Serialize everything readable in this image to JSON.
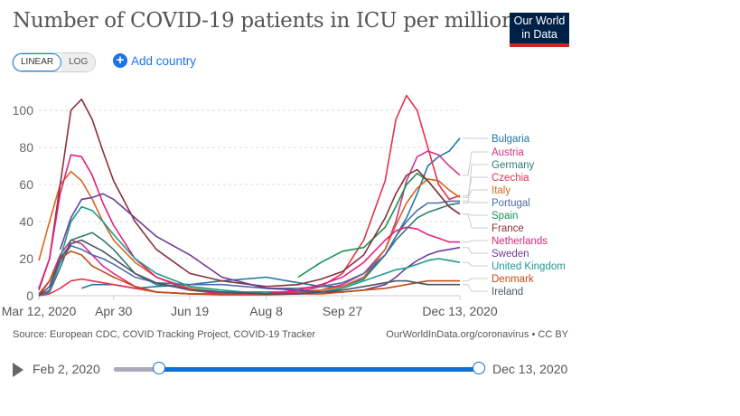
{
  "header": {
    "title": "Number of COVID-19 patients in ICU per million",
    "logo": [
      "Our World",
      "in Data"
    ]
  },
  "controls": {
    "linear": "LINEAR",
    "log": "LOG",
    "add_country": "Add country",
    "active_scale": "linear"
  },
  "footer": {
    "source": "Source: European CDC, COVID Tracking Project, COVID-19 Tracker",
    "credit": "OurWorldInData.org/coronavirus • CC BY"
  },
  "timeline": {
    "start": "Feb 2, 2020",
    "end": "Dec 13, 2020",
    "selected_range": [
      "Mar 12, 2020",
      "Dec 13, 2020"
    ]
  },
  "chart_data": {
    "type": "line",
    "title": "Number of COVID-19 patients in ICU per million",
    "y_ticks": [
      "0",
      "20",
      "40",
      "60",
      "80",
      "100"
    ],
    "ylim": [
      0,
      110
    ],
    "x_ticks": [
      "Mar 12, 2020",
      "Apr 30",
      "Jun 19",
      "Aug 8",
      "Sep 27",
      "Dec 13, 2020"
    ],
    "x_tick_dates": [
      "2020-03-12",
      "2020-04-30",
      "2020-06-19",
      "2020-08-08",
      "2020-09-27",
      "2020-12-13"
    ],
    "xlim": [
      "2020-03-12",
      "2020-12-13"
    ],
    "grid": "horizontal dashed",
    "legend": "right, line-end labels",
    "x": [
      "2020-03-12",
      "2020-03-19",
      "2020-03-26",
      "2020-04-02",
      "2020-04-09",
      "2020-04-16",
      "2020-04-23",
      "2020-04-30",
      "2020-05-14",
      "2020-05-28",
      "2020-06-19",
      "2020-07-10",
      "2020-08-08",
      "2020-08-29",
      "2020-09-13",
      "2020-09-27",
      "2020-10-11",
      "2020-10-25",
      "2020-11-01",
      "2020-11-08",
      "2020-11-15",
      "2020-11-22",
      "2020-11-29",
      "2020-12-06",
      "2020-12-13"
    ],
    "series": [
      {
        "name": "Bulgaria",
        "color": "#1f78a8",
        "values": [
          null,
          null,
          null,
          null,
          4,
          6,
          6,
          6,
          4,
          5,
          6,
          8,
          10,
          7,
          5,
          5,
          10,
          22,
          32,
          42,
          55,
          70,
          75,
          78,
          85
        ]
      },
      {
        "name": "Austria",
        "color": "#d62f8b",
        "values": [
          1,
          8,
          22,
          30,
          28,
          22,
          16,
          12,
          5,
          2,
          1,
          1,
          1,
          2,
          3,
          6,
          12,
          25,
          40,
          62,
          75,
          78,
          76,
          70,
          65
        ]
      },
      {
        "name": "Germany",
        "color": "#2b7d73",
        "values": [
          0,
          2,
          15,
          30,
          32,
          34,
          30,
          25,
          12,
          6,
          4,
          2,
          2,
          2,
          3,
          5,
          9,
          22,
          30,
          36,
          42,
          45,
          47,
          49,
          50
        ]
      },
      {
        "name": "Czechia",
        "color": "#e0344e",
        "values": [
          0,
          1,
          4,
          8,
          9,
          8,
          7,
          6,
          4,
          2,
          1,
          1,
          1,
          2,
          5,
          12,
          30,
          62,
          95,
          108,
          100,
          80,
          60,
          52,
          54
        ]
      },
      {
        "name": "Italy",
        "color": "#d8651f",
        "values": [
          19,
          40,
          60,
          67,
          62,
          52,
          40,
          30,
          18,
          10,
          4,
          1.5,
          0.6,
          1,
          3,
          5,
          10,
          25,
          38,
          50,
          58,
          63,
          62,
          57,
          53
        ]
      },
      {
        "name": "Portugal",
        "color": "#4e6bab",
        "values": [
          0,
          3,
          18,
          27,
          25,
          22,
          20,
          17,
          10,
          7,
          6,
          6,
          4,
          4,
          5,
          7,
          12,
          22,
          32,
          40,
          46,
          50,
          50,
          51,
          51
        ]
      },
      {
        "name": "Spain",
        "color": "#16934e",
        "values": [
          null,
          null,
          null,
          null,
          null,
          null,
          null,
          null,
          null,
          null,
          null,
          null,
          null,
          10,
          18,
          24,
          26,
          37,
          48,
          60,
          66,
          62,
          55,
          48,
          44
        ]
      },
      {
        "name": "France",
        "color": "#8b2f3a",
        "values": [
          3,
          20,
          60,
          100,
          106,
          95,
          78,
          62,
          40,
          25,
          12,
          8,
          5,
          6,
          9,
          13,
          22,
          42,
          55,
          65,
          68,
          62,
          55,
          48,
          44
        ]
      },
      {
        "name": "Netherlands",
        "color": "#e0237a",
        "values": [
          4,
          20,
          55,
          76,
          75,
          65,
          50,
          38,
          20,
          10,
          3,
          1,
          1,
          3,
          6,
          10,
          18,
          30,
          35,
          37,
          36,
          33,
          31,
          29,
          29
        ]
      },
      {
        "name": "Sweden",
        "color": "#6e3b9a",
        "values": [
          null,
          null,
          25,
          42,
          52,
          53,
          55,
          52,
          42,
          32,
          22,
          10,
          4,
          3,
          2,
          2,
          3,
          6,
          10,
          15,
          19,
          22,
          24,
          25,
          26
        ]
      },
      {
        "name": "United Kingdom",
        "color": "#1c9a8f",
        "values": [
          null,
          null,
          20,
          40,
          48,
          46,
          40,
          33,
          20,
          12,
          5,
          3,
          1,
          1,
          2,
          4,
          8,
          12,
          14,
          15,
          17,
          19,
          20,
          19,
          18
        ]
      },
      {
        "name": "Denmark",
        "color": "#c24b14",
        "values": [
          0,
          8,
          20,
          24,
          22,
          16,
          13,
          10,
          5,
          2,
          1,
          0.5,
          0.5,
          1,
          1,
          2,
          3,
          4,
          5,
          6,
          7,
          8,
          8,
          8,
          8
        ]
      },
      {
        "name": "Ireland",
        "color": "#4a5560",
        "values": [
          0,
          5,
          20,
          28,
          30,
          27,
          24,
          20,
          12,
          7,
          3,
          2,
          1,
          1,
          2,
          3,
          5,
          7,
          8,
          8,
          7,
          6,
          6,
          6,
          6
        ]
      }
    ]
  }
}
